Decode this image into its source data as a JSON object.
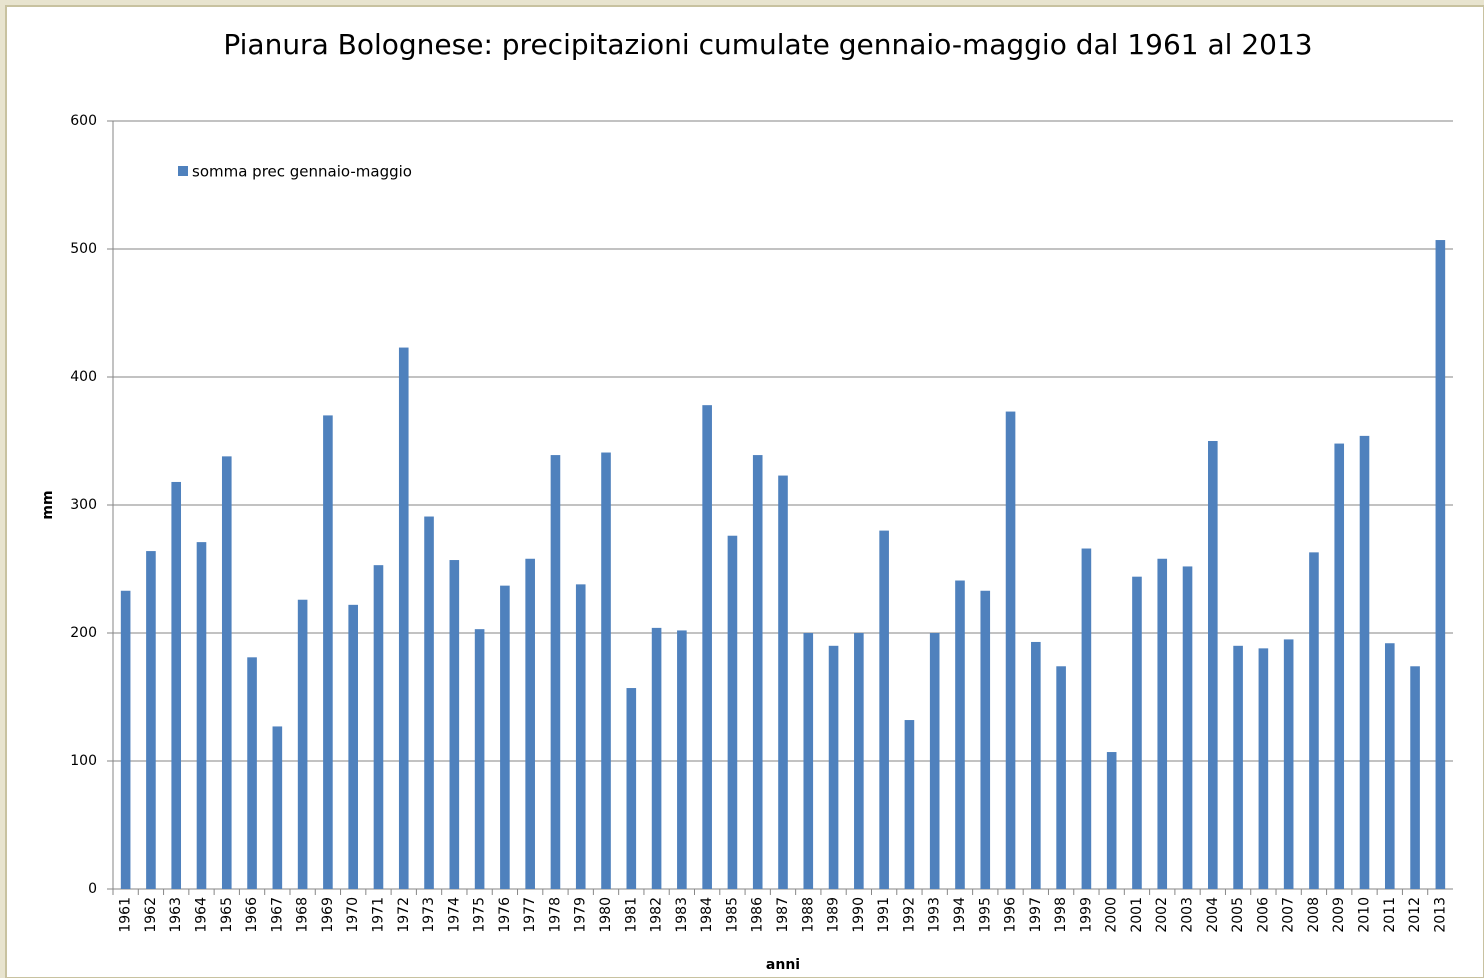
{
  "chart_data": {
    "type": "bar",
    "title": "Pianura Bolognese: precipitazioni cumulate gennaio-maggio dal 1961 al 2013",
    "x_label": "anni",
    "y_label": "mm",
    "categories": [
      "1961",
      "1962",
      "1963",
      "1964",
      "1965",
      "1966",
      "1967",
      "1968",
      "1969",
      "1970",
      "1971",
      "1972",
      "1973",
      "1974",
      "1975",
      "1976",
      "1977",
      "1978",
      "1979",
      "1980",
      "1981",
      "1982",
      "1983",
      "1984",
      "1985",
      "1986",
      "1987",
      "1988",
      "1989",
      "1990",
      "1991",
      "1992",
      "1993",
      "1994",
      "1995",
      "1996",
      "1997",
      "1998",
      "1999",
      "2000",
      "2001",
      "2002",
      "2003",
      "2004",
      "2005",
      "2006",
      "2007",
      "2008",
      "2009",
      "2010",
      "2011",
      "2012",
      "2013"
    ],
    "series": [
      {
        "name": "somma prec gennaio-maggio",
        "color": "#4f81bd",
        "values": [
          233,
          264,
          318,
          271,
          338,
          181,
          127,
          226,
          370,
          222,
          253,
          423,
          291,
          257,
          203,
          237,
          258,
          339,
          238,
          341,
          157,
          204,
          202,
          378,
          276,
          339,
          323,
          200,
          190,
          200,
          280,
          132,
          200,
          241,
          233,
          373,
          193,
          174,
          266,
          107,
          244,
          258,
          252,
          350,
          190,
          188,
          195,
          263,
          348,
          354,
          192,
          174,
          507
        ]
      }
    ],
    "ylim": [
      0,
      600
    ],
    "yticks": [
      0,
      100,
      200,
      300,
      400,
      500,
      600
    ],
    "grid": true,
    "legend": "top-left"
  }
}
